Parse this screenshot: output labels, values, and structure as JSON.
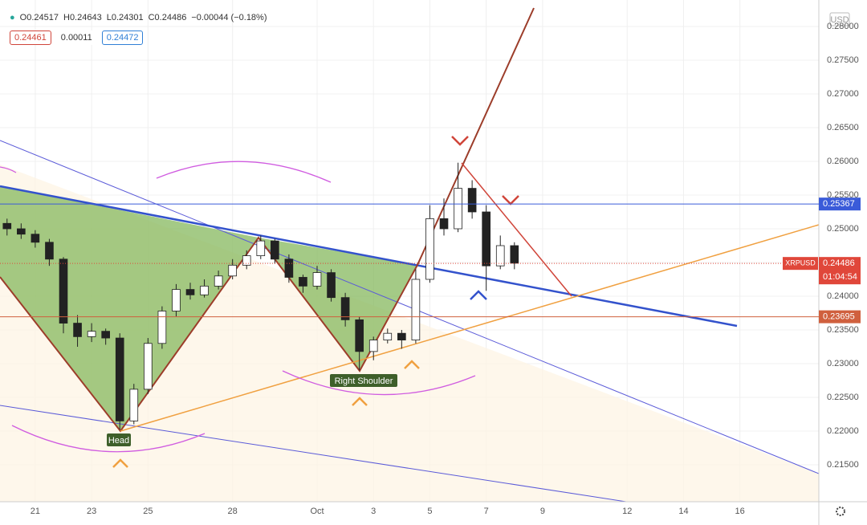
{
  "chart_data": {
    "type": "candlestick",
    "symbol": "XRPUSD",
    "currency": "USD",
    "header": {
      "ohlc": [
        {
          "label": "O",
          "value": 0.24517
        },
        {
          "label": "H",
          "value": 0.24643
        },
        {
          "label": "L",
          "value": 0.24301
        },
        {
          "label": "C",
          "value": 0.24486
        }
      ],
      "change": "−0.00044 (−0.18%)",
      "boxes": [
        {
          "value": 0.24461,
          "color": "#d0453a"
        },
        {
          "value": 0.00011,
          "color": "#333333"
        },
        {
          "value": 0.24472,
          "color": "#2f7fd6"
        }
      ]
    },
    "x": [
      -1,
      -0.5,
      0,
      0.5,
      1,
      1.5,
      2,
      2.5,
      3,
      3.5,
      4,
      4.5,
      5,
      5.5,
      6,
      6.5,
      7,
      7.5,
      8,
      8.5,
      9,
      9.5,
      10,
      10.5,
      11,
      11.5,
      12,
      12.5,
      13,
      13.5,
      14,
      14.5,
      15,
      15.5,
      16,
      16.5,
      17
    ],
    "open": [
      0.2508,
      0.25,
      0.2492,
      0.248,
      0.2455,
      0.236,
      0.234,
      0.2348,
      0.2338,
      0.2215,
      0.2262,
      0.233,
      0.2378,
      0.241,
      0.2402,
      0.2415,
      0.243,
      0.2446,
      0.246,
      0.2482,
      0.2455,
      0.2428,
      0.2415,
      0.2435,
      0.2398,
      0.2365,
      0.2318,
      0.2335,
      0.2345,
      0.2335,
      0.2425,
      0.2515,
      0.25,
      0.256,
      0.2525,
      0.2445,
      0.2475
    ],
    "high": [
      0.2515,
      0.2508,
      0.2498,
      0.2485,
      0.2458,
      0.2372,
      0.236,
      0.2352,
      0.2345,
      0.227,
      0.2338,
      0.2385,
      0.2418,
      0.242,
      0.2425,
      0.2438,
      0.2455,
      0.2468,
      0.249,
      0.2485,
      0.2462,
      0.2432,
      0.2445,
      0.244,
      0.2405,
      0.237,
      0.234,
      0.2352,
      0.235,
      0.244,
      0.2535,
      0.2545,
      0.2598,
      0.2572,
      0.2535,
      0.249,
      0.248
    ],
    "low": [
      0.249,
      0.2485,
      0.2472,
      0.2445,
      0.2345,
      0.2325,
      0.2332,
      0.2328,
      0.2202,
      0.221,
      0.2255,
      0.2322,
      0.237,
      0.2395,
      0.2398,
      0.241,
      0.2425,
      0.244,
      0.2455,
      0.2448,
      0.242,
      0.2405,
      0.241,
      0.2392,
      0.2355,
      0.229,
      0.2305,
      0.233,
      0.2322,
      0.233,
      0.242,
      0.249,
      0.2495,
      0.2515,
      0.2408,
      0.244,
      0.244
    ],
    "close": [
      0.25,
      0.2492,
      0.248,
      0.2455,
      0.236,
      0.234,
      0.2348,
      0.2338,
      0.2215,
      0.2262,
      0.233,
      0.2378,
      0.241,
      0.2402,
      0.2415,
      0.243,
      0.2446,
      0.246,
      0.2482,
      0.2455,
      0.2428,
      0.2415,
      0.2435,
      0.2398,
      0.2365,
      0.2318,
      0.2335,
      0.2345,
      0.2335,
      0.2425,
      0.2515,
      0.25,
      0.256,
      0.2525,
      0.2445,
      0.2475,
      0.2449
    ],
    "up_color": "#ffffff",
    "down_color": "#222222",
    "xlim": [
      -1.25,
      27.8
    ],
    "xticks": [
      {
        "value": 0,
        "label": "21"
      },
      {
        "value": 2,
        "label": "23"
      },
      {
        "value": 4,
        "label": "25"
      },
      {
        "value": 7,
        "label": "28"
      },
      {
        "value": 10,
        "label": "Oct"
      },
      {
        "value": 12,
        "label": "3"
      },
      {
        "value": 14,
        "label": "5"
      },
      {
        "value": 16,
        "label": "7"
      },
      {
        "value": 18,
        "label": "9"
      },
      {
        "value": 21,
        "label": "12"
      },
      {
        "value": 23,
        "label": "14"
      },
      {
        "value": 25,
        "label": "16"
      }
    ],
    "ylim": [
      0.20952,
      0.28393
    ],
    "yticks": [
      {
        "value": 0.215,
        "label": "0.21500"
      },
      {
        "value": 0.22,
        "label": "0.22000"
      },
      {
        "value": 0.225,
        "label": "0.22500"
      },
      {
        "value": 0.23,
        "label": "0.23000"
      },
      {
        "value": 0.235,
        "label": "0.23500"
      },
      {
        "value": 0.24,
        "label": "0.24000"
      },
      {
        "value": 0.245,
        "label": "0.24500"
      },
      {
        "value": 0.25,
        "label": "0.25000"
      },
      {
        "value": 0.255,
        "label": "0.25500"
      },
      {
        "value": 0.26,
        "label": "0.26000"
      },
      {
        "value": 0.265,
        "label": "0.26500"
      },
      {
        "value": 0.27,
        "label": "0.27000"
      },
      {
        "value": 0.275,
        "label": "0.27500"
      },
      {
        "value": 0.28,
        "label": "0.28000"
      }
    ],
    "grid": true,
    "hlines": [
      {
        "value": 0.25367,
        "color": "#3a5bd9"
      },
      {
        "value": 0.23695,
        "color": "#d0603e"
      }
    ],
    "last_price": {
      "value": 0.24486,
      "countdown": "01:04:54",
      "color": "#e0473a"
    },
    "annotations": [
      "Head",
      "Right Shoulder"
    ]
  }
}
